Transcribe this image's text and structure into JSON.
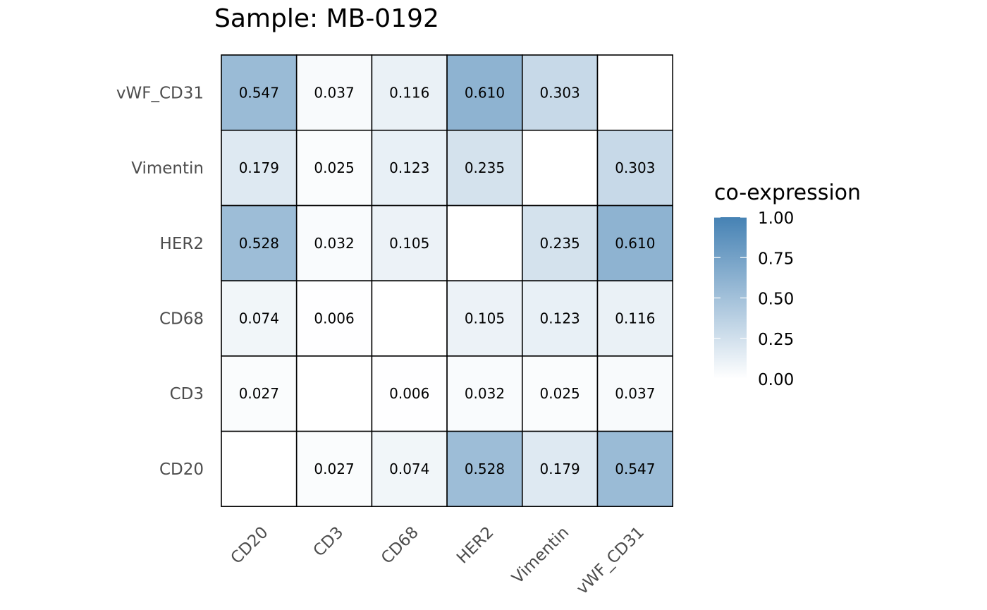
{
  "chart_data": {
    "type": "heatmap",
    "title": "Sample: MB-0192",
    "xlabel": "",
    "ylabel": "",
    "x_categories": [
      "CD20",
      "CD3",
      "CD68",
      "HER2",
      "Vimentin",
      "vWF_CD31"
    ],
    "y_categories": [
      "CD20",
      "CD3",
      "CD68",
      "HER2",
      "Vimentin",
      "vWF_CD31"
    ],
    "values": [
      [
        null,
        0.027,
        0.074,
        0.528,
        0.179,
        0.547
      ],
      [
        0.027,
        null,
        0.006,
        0.032,
        0.025,
        0.037
      ],
      [
        0.074,
        0.006,
        null,
        0.105,
        0.123,
        0.116
      ],
      [
        0.528,
        0.032,
        0.105,
        null,
        0.235,
        0.61
      ],
      [
        0.179,
        0.025,
        0.123,
        0.235,
        null,
        0.303
      ],
      [
        0.547,
        0.037,
        0.116,
        0.61,
        0.303,
        null
      ]
    ],
    "value_format": "0.000",
    "color_scale": {
      "low": "#ffffff",
      "high": "#4682b4",
      "limits": [
        0,
        1
      ],
      "na_color": "#ffffff"
    },
    "legend": {
      "title": "co-expression",
      "ticks": [
        "1.00",
        "0.75",
        "0.50",
        "0.25",
        "0.00"
      ],
      "tick_values": [
        1,
        0.75,
        0.5,
        0.25,
        0
      ],
      "placement": "right"
    },
    "grid": false
  }
}
